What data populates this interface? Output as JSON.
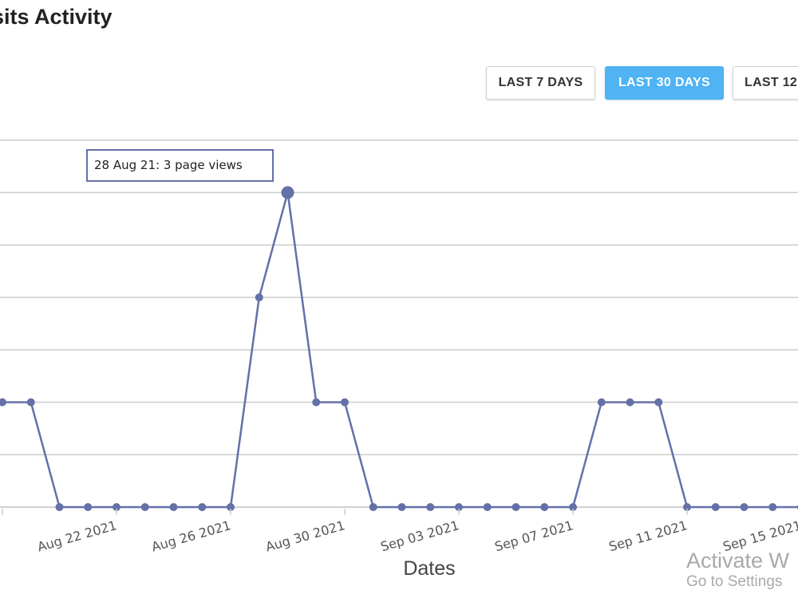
{
  "header": {
    "title": "sits Activity"
  },
  "range_buttons": [
    {
      "label": "LAST 7 DAYS",
      "active": false
    },
    {
      "label": "LAST 30 DAYS",
      "active": true
    },
    {
      "label": "LAST 12",
      "active": false
    }
  ],
  "colors": {
    "series": "#6470a8",
    "active_button": "#4fb3f4",
    "grid": "#cccccc"
  },
  "tooltip": {
    "text": "28 Aug 21: 3 page views"
  },
  "watermark": {
    "line1": "Activate W",
    "line2": "Go to Settings"
  },
  "chart_data": {
    "type": "line",
    "xlabel": "Dates",
    "ylabel": "",
    "ylim": [
      0,
      3
    ],
    "grid": true,
    "x_tick_labels": [
      "Aug 22 2021",
      "Aug 26 2021",
      "Aug 30 2021",
      "Sep 03 2021",
      "Sep 07 2021",
      "Sep 11 2021",
      "Sep 15 2021"
    ],
    "x": [
      "2021-08-18",
      "2021-08-19",
      "2021-08-20",
      "2021-08-21",
      "2021-08-22",
      "2021-08-23",
      "2021-08-24",
      "2021-08-25",
      "2021-08-26",
      "2021-08-27",
      "2021-08-28",
      "2021-08-29",
      "2021-08-30",
      "2021-08-31",
      "2021-09-01",
      "2021-09-02",
      "2021-09-03",
      "2021-09-04",
      "2021-09-05",
      "2021-09-06",
      "2021-09-07",
      "2021-09-08",
      "2021-09-09",
      "2021-09-10",
      "2021-09-11",
      "2021-09-12",
      "2021-09-13",
      "2021-09-14",
      "2021-09-15"
    ],
    "series": [
      {
        "values": [
          1,
          1,
          0,
          0,
          0,
          0,
          0,
          0,
          0,
          2,
          3,
          1,
          1,
          0,
          0,
          0,
          0,
          0,
          0,
          0,
          0,
          1,
          1,
          1,
          0,
          0,
          0,
          0,
          0
        ]
      }
    ]
  }
}
